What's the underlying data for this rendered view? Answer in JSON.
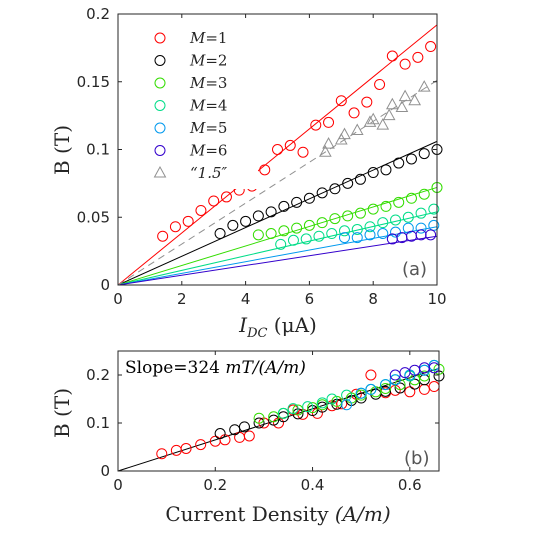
{
  "chart_data": [
    {
      "panel": "(a)",
      "type": "scatter",
      "xlabel": "I_DC (μA)",
      "xlabel_main": "I",
      "xlabel_sub": "DC",
      "xlabel_unit": " (μA)",
      "ylabel": "B (T)",
      "xlim": [
        0,
        10
      ],
      "ylim": [
        0,
        0.2
      ],
      "xticks": [
        0,
        2,
        4,
        6,
        8,
        10
      ],
      "yticks": [
        0,
        0.05,
        0.1,
        0.15,
        0.2
      ],
      "ytick_labels": [
        "0",
        "0.05",
        "0.1",
        "0.15",
        "0.2"
      ],
      "grid": false,
      "legend_position": "top-left",
      "series": [
        {
          "name": "M=1",
          "label_var": "M",
          "label_val": "=1",
          "color": "#ff0000",
          "marker": "circle",
          "fit_slope": 0.0192,
          "x": [
            1.4,
            1.8,
            2.2,
            2.6,
            3.0,
            3.4,
            3.8,
            4.2,
            4.6,
            5.0,
            5.4,
            5.8,
            6.2,
            6.6,
            7.0,
            7.4,
            7.8,
            8.2,
            8.6,
            9.0,
            9.4,
            9.8
          ],
          "y": [
            0.036,
            0.043,
            0.047,
            0.055,
            0.062,
            0.065,
            0.07,
            0.073,
            0.085,
            0.1,
            0.103,
            0.098,
            0.118,
            0.12,
            0.136,
            0.127,
            0.135,
            0.148,
            0.169,
            0.163,
            0.168,
            0.176
          ]
        },
        {
          "name": "M=2",
          "label_var": "M",
          "label_val": "=2",
          "color": "#000000",
          "marker": "circle",
          "fit_slope": 0.0106,
          "x": [
            3.2,
            3.6,
            4.0,
            4.4,
            4.8,
            5.2,
            5.6,
            6.0,
            6.4,
            6.8,
            7.2,
            7.6,
            8.0,
            8.4,
            8.8,
            9.2,
            9.6,
            10.0
          ],
          "y": [
            0.038,
            0.044,
            0.047,
            0.051,
            0.054,
            0.058,
            0.061,
            0.064,
            0.068,
            0.071,
            0.075,
            0.078,
            0.083,
            0.085,
            0.09,
            0.093,
            0.097,
            0.1
          ]
        },
        {
          "name": "M=3",
          "label_var": "M",
          "label_val": "=3",
          "color": "#33dd00",
          "marker": "circle",
          "fit_slope": 0.0072,
          "x": [
            4.4,
            4.8,
            5.2,
            5.6,
            6.0,
            6.4,
            6.8,
            7.2,
            7.6,
            8.0,
            8.4,
            8.8,
            9.2,
            9.6,
            10.0
          ],
          "y": [
            0.037,
            0.038,
            0.04,
            0.042,
            0.044,
            0.046,
            0.049,
            0.051,
            0.053,
            0.056,
            0.058,
            0.061,
            0.064,
            0.067,
            0.072
          ]
        },
        {
          "name": "M=4",
          "label_var": "M",
          "label_val": "=4",
          "color": "#00dd88",
          "marker": "circle",
          "fit_slope": 0.0054,
          "x": [
            5.1,
            5.5,
            5.9,
            6.3,
            6.7,
            7.1,
            7.5,
            7.9,
            8.3,
            8.7,
            9.1,
            9.5,
            9.9
          ],
          "y": [
            0.03,
            0.033,
            0.034,
            0.036,
            0.038,
            0.04,
            0.041,
            0.043,
            0.046,
            0.048,
            0.05,
            0.053,
            0.056
          ]
        },
        {
          "name": "M=5",
          "label_var": "M",
          "label_val": "=5",
          "color": "#0099ee",
          "marker": "circle",
          "fit_slope": 0.0043,
          "x": [
            7.1,
            7.5,
            7.9,
            8.3,
            8.7,
            9.1,
            9.5,
            9.9
          ],
          "y": [
            0.035,
            0.035,
            0.037,
            0.038,
            0.039,
            0.042,
            0.042,
            0.044
          ]
        },
        {
          "name": "M=6",
          "label_var": "M",
          "label_val": "=6",
          "color": "#3300cc",
          "marker": "circle",
          "fit_slope": 0.0036,
          "x": [
            8.6,
            8.9,
            9.2,
            9.5,
            9.8
          ],
          "y": [
            0.034,
            0.035,
            0.036,
            0.037,
            0.037
          ]
        },
        {
          "name": "“1.5″",
          "label_var": "",
          "label_val": "“1.5″",
          "color": "#909090",
          "marker": "triangle",
          "fit_slope": 0.0151,
          "fit_dashed": true,
          "x": [
            6.5,
            6.6,
            7.0,
            7.1,
            7.5,
            7.9,
            8.0,
            8.3,
            8.5,
            8.6,
            8.9,
            9.0,
            9.3,
            9.6
          ],
          "y": [
            0.098,
            0.104,
            0.107,
            0.111,
            0.114,
            0.12,
            0.122,
            0.118,
            0.125,
            0.133,
            0.131,
            0.139,
            0.136,
            0.146
          ]
        }
      ]
    },
    {
      "panel": "(b)",
      "type": "scatter",
      "xlabel": "Current Density (A/m)",
      "xlabel_main": "Current Density ",
      "xlabel_unit": "(A/m)",
      "ylabel": "B (T)",
      "xlim": [
        0,
        0.66
      ],
      "ylim": [
        0,
        0.25
      ],
      "xticks": [
        0,
        0.2,
        0.4,
        0.6
      ],
      "yticks": [
        0,
        0.1,
        0.2
      ],
      "grid": false,
      "annotation": "Slope=324 mT/(A/m)",
      "annotation_main": "Slope=324 ",
      "annotation_unit": "mT/(A/m)",
      "fit_slope": 0.324,
      "series": [
        {
          "name": "M=1",
          "color": "#ff0000",
          "x": [
            0.09,
            0.12,
            0.14,
            0.17,
            0.2,
            0.22,
            0.25,
            0.27,
            0.3,
            0.33,
            0.36,
            0.38,
            0.41,
            0.44,
            0.46,
            0.49,
            0.52,
            0.55,
            0.57,
            0.6,
            0.63,
            0.65
          ],
          "y": [
            0.036,
            0.043,
            0.047,
            0.055,
            0.062,
            0.065,
            0.07,
            0.073,
            0.1,
            0.1,
            0.127,
            0.118,
            0.12,
            0.136,
            0.14,
            0.16,
            0.2,
            0.163,
            0.168,
            0.165,
            0.17,
            0.176
          ]
        },
        {
          "name": "M=2",
          "color": "#000000",
          "x": [
            0.21,
            0.24,
            0.26,
            0.29,
            0.32,
            0.34,
            0.37,
            0.4,
            0.42,
            0.45,
            0.48,
            0.5,
            0.53,
            0.55,
            0.58,
            0.61,
            0.63,
            0.66
          ],
          "y": [
            0.078,
            0.086,
            0.092,
            0.1,
            0.106,
            0.113,
            0.119,
            0.126,
            0.133,
            0.139,
            0.147,
            0.152,
            0.16,
            0.166,
            0.173,
            0.181,
            0.19,
            0.198
          ]
        },
        {
          "name": "M=3",
          "color": "#33dd00",
          "x": [
            0.29,
            0.32,
            0.34,
            0.37,
            0.4,
            0.42,
            0.45,
            0.48,
            0.5,
            0.53,
            0.55,
            0.58,
            0.61,
            0.63,
            0.66
          ],
          "y": [
            0.11,
            0.113,
            0.12,
            0.127,
            0.132,
            0.138,
            0.145,
            0.152,
            0.158,
            0.165,
            0.172,
            0.18,
            0.19,
            0.198,
            0.212
          ]
        },
        {
          "name": "M=4",
          "color": "#00dd88",
          "x": [
            0.34,
            0.36,
            0.39,
            0.42,
            0.44,
            0.47,
            0.5,
            0.52,
            0.55,
            0.57,
            0.6,
            0.63,
            0.65
          ],
          "y": [
            0.12,
            0.13,
            0.134,
            0.142,
            0.15,
            0.158,
            0.162,
            0.17,
            0.18,
            0.19,
            0.198,
            0.21,
            0.22
          ]
        },
        {
          "name": "M=5",
          "color": "#0099ee",
          "x": [
            0.47,
            0.5,
            0.52,
            0.55,
            0.57,
            0.6,
            0.63,
            0.65
          ],
          "y": [
            0.138,
            0.162,
            0.17,
            0.18,
            0.19,
            0.2,
            0.21,
            0.22
          ]
        },
        {
          "name": "M=6",
          "color": "#3300cc",
          "x": [
            0.57,
            0.59,
            0.61,
            0.63,
            0.65
          ],
          "y": [
            0.2,
            0.205,
            0.21,
            0.215,
            0.215
          ]
        }
      ]
    }
  ]
}
